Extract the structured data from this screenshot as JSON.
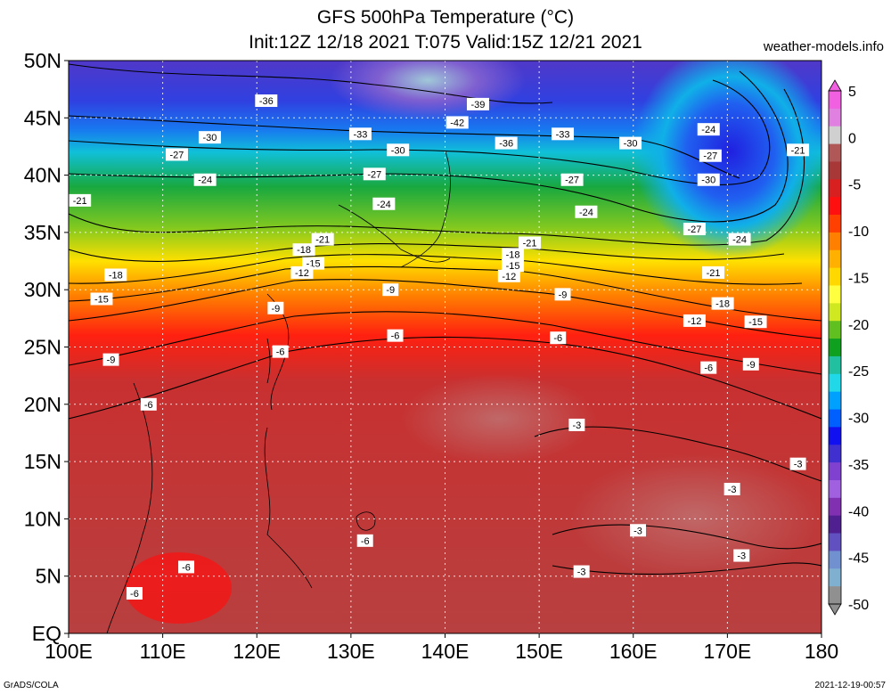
{
  "header": {
    "title": "GFS 500hPa Temperature (°C)",
    "subtitle": "Init:12Z 12/18 2021 T:075 Valid:15Z 12/21 2021",
    "site": "weather-models.info"
  },
  "footer": {
    "credit": "GrADS/COLA",
    "timestamp": "2021-12-19-00:57"
  },
  "map": {
    "lon_labels": [
      "100E",
      "110E",
      "120E",
      "130E",
      "140E",
      "150E",
      "160E",
      "170E",
      "180"
    ],
    "lat_labels": [
      "50N",
      "45N",
      "40N",
      "35N",
      "30N",
      "25N",
      "20N",
      "15N",
      "10N",
      "5N",
      "EQ"
    ],
    "lon_values": [
      100,
      110,
      120,
      130,
      140,
      150,
      160,
      170,
      180
    ],
    "lat_values": [
      50,
      45,
      40,
      35,
      30,
      25,
      20,
      15,
      10,
      5,
      0
    ],
    "contour_labels": [
      {
        "text": "-36",
        "lon": 121,
        "lat": 46.5
      },
      {
        "text": "-39",
        "lon": 143.5,
        "lat": 46.2
      },
      {
        "text": "-42",
        "lon": 141.3,
        "lat": 44.6
      },
      {
        "text": "-30",
        "lon": 115,
        "lat": 43.3
      },
      {
        "text": "-33",
        "lon": 131,
        "lat": 43.6
      },
      {
        "text": "-36",
        "lon": 146.5,
        "lat": 42.8
      },
      {
        "text": "-33",
        "lon": 152.5,
        "lat": 43.6
      },
      {
        "text": "-30",
        "lon": 135,
        "lat": 42.2
      },
      {
        "text": "-30",
        "lon": 159.7,
        "lat": 42.8
      },
      {
        "text": "-27",
        "lon": 111.5,
        "lat": 41.8
      },
      {
        "text": "-24",
        "lon": 114.5,
        "lat": 39.6
      },
      {
        "text": "-27",
        "lon": 132.5,
        "lat": 40.1
      },
      {
        "text": "-27",
        "lon": 153.5,
        "lat": 39.6
      },
      {
        "text": "-24",
        "lon": 133.5,
        "lat": 37.5
      },
      {
        "text": "-24",
        "lon": 155,
        "lat": 36.8
      },
      {
        "text": "-21",
        "lon": 101.2,
        "lat": 37.8
      },
      {
        "text": "-21",
        "lon": 127,
        "lat": 34.4
      },
      {
        "text": "-18",
        "lon": 125,
        "lat": 33.5
      },
      {
        "text": "-15",
        "lon": 126,
        "lat": 32.3
      },
      {
        "text": "-12",
        "lon": 124.8,
        "lat": 31.5
      },
      {
        "text": "-21",
        "lon": 149,
        "lat": 34.1
      },
      {
        "text": "-18",
        "lon": 147.2,
        "lat": 33.1
      },
      {
        "text": "-15",
        "lon": 147.2,
        "lat": 32.1
      },
      {
        "text": "-12",
        "lon": 146.8,
        "lat": 31.2
      },
      {
        "text": "-9",
        "lon": 134.2,
        "lat": 30.0
      },
      {
        "text": "-9",
        "lon": 152.5,
        "lat": 29.6
      },
      {
        "text": "-18",
        "lon": 105,
        "lat": 31.3
      },
      {
        "text": "-15",
        "lon": 103.5,
        "lat": 29.2
      },
      {
        "text": "-9",
        "lon": 122,
        "lat": 28.4
      },
      {
        "text": "-9",
        "lon": 104.5,
        "lat": 23.9
      },
      {
        "text": "-6",
        "lon": 134.7,
        "lat": 26.0
      },
      {
        "text": "-6",
        "lon": 152,
        "lat": 25.8
      },
      {
        "text": "-6",
        "lon": 122.5,
        "lat": 24.6
      },
      {
        "text": "-6",
        "lon": 108.5,
        "lat": 20.0
      },
      {
        "text": "-6",
        "lon": 168,
        "lat": 23.2
      },
      {
        "text": "-9",
        "lon": 172.5,
        "lat": 23.5
      },
      {
        "text": "-24",
        "lon": 168,
        "lat": 44.0
      },
      {
        "text": "-27",
        "lon": 168.2,
        "lat": 41.7
      },
      {
        "text": "-30",
        "lon": 168,
        "lat": 39.6
      },
      {
        "text": "-21",
        "lon": 177.5,
        "lat": 42.2
      },
      {
        "text": "-27",
        "lon": 166.5,
        "lat": 35.3
      },
      {
        "text": "-24",
        "lon": 171.3,
        "lat": 34.4
      },
      {
        "text": "-21",
        "lon": 168.5,
        "lat": 31.5
      },
      {
        "text": "-18",
        "lon": 169.5,
        "lat": 28.8
      },
      {
        "text": "-15",
        "lon": 173,
        "lat": 27.2
      },
      {
        "text": "-12",
        "lon": 166.5,
        "lat": 27.3
      },
      {
        "text": "-3",
        "lon": 154,
        "lat": 18.2
      },
      {
        "text": "-3",
        "lon": 177.5,
        "lat": 14.8
      },
      {
        "text": "-3",
        "lon": 170.5,
        "lat": 12.6
      },
      {
        "text": "-3",
        "lon": 160.5,
        "lat": 9.0
      },
      {
        "text": "-3",
        "lon": 171.5,
        "lat": 6.8
      },
      {
        "text": "-3",
        "lon": 154.5,
        "lat": 5.4
      },
      {
        "text": "-6",
        "lon": 131.5,
        "lat": 8.1
      },
      {
        "text": "-6",
        "lon": 112.5,
        "lat": 5.8
      },
      {
        "text": "-6",
        "lon": 107,
        "lat": 3.5
      }
    ]
  },
  "colorbar": {
    "labels": [
      "5",
      "0",
      "-5",
      "-10",
      "-15",
      "-20",
      "-25",
      "-30",
      "-35",
      "-40",
      "-45",
      "-50"
    ],
    "values": [
      5,
      0,
      -5,
      -10,
      -15,
      -20,
      -25,
      -30,
      -35,
      -40,
      -45,
      -50
    ],
    "colors": [
      "#f060e0",
      "#e080e0",
      "#d0d0d0",
      "#b05858",
      "#a83838",
      "#d82020",
      "#ff1010",
      "#ff4000",
      "#ff8000",
      "#ffb000",
      "#ffd800",
      "#ffff40",
      "#d0e820",
      "#60c020",
      "#10a020",
      "#20c0a0",
      "#20d8e8",
      "#00a0ff",
      "#0060ff",
      "#1010f0",
      "#4030d0",
      "#8040d0",
      "#a060e0",
      "#8030b0",
      "#502090",
      "#6050c0",
      "#7090d0",
      "#80b0d0",
      "#909090"
    ]
  }
}
